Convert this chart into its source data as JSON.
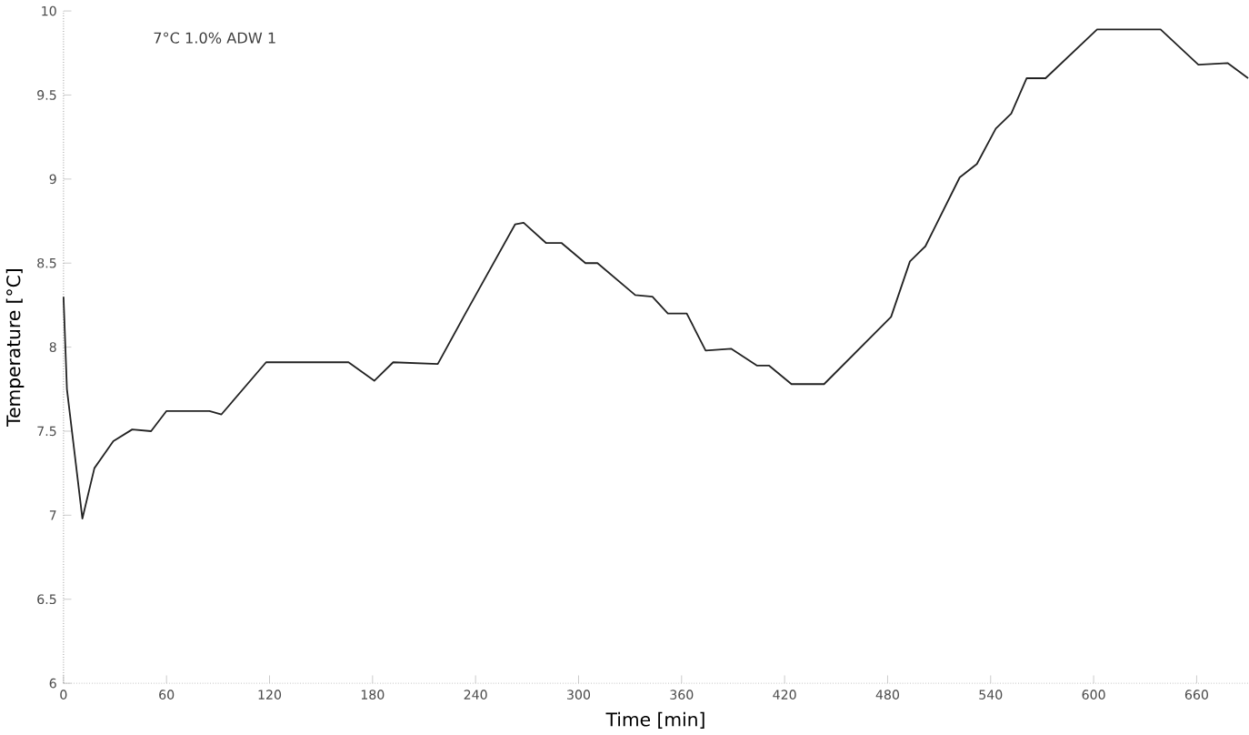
{
  "chart_data": {
    "type": "line",
    "xlabel": "Time [min]",
    "ylabel": "Temperature [°C]",
    "annotations": [
      "7°C     1.0% ADW 1"
    ],
    "xlim": [
      0,
      690
    ],
    "xticks": [
      0,
      60,
      120,
      180,
      240,
      300,
      360,
      420,
      480,
      540,
      600,
      660
    ],
    "ylim": [
      6,
      10
    ],
    "yticks": [
      6,
      6.5,
      7,
      7.5,
      8,
      8.5,
      9,
      9.5,
      10
    ],
    "series": [
      {
        "color": "#222222",
        "x": [
          0,
          2,
          11,
          18,
          29,
          40,
          51,
          60,
          85,
          92,
          118,
          166,
          181,
          192,
          218,
          233,
          263,
          268,
          281,
          290,
          304,
          311,
          333,
          343,
          352,
          363,
          374,
          389,
          404,
          411,
          424,
          443,
          482,
          493,
          502,
          522,
          532,
          543,
          552,
          561,
          572,
          602,
          639,
          661,
          678,
          690
        ],
        "values": [
          8.3,
          7.75,
          6.98,
          7.28,
          7.44,
          7.51,
          7.5,
          7.62,
          7.62,
          7.6,
          7.91,
          7.91,
          7.8,
          7.91,
          7.9,
          8.18,
          8.73,
          8.74,
          8.62,
          8.62,
          8.5,
          8.5,
          8.31,
          8.3,
          8.2,
          8.2,
          7.98,
          7.99,
          7.89,
          7.89,
          7.78,
          7.78,
          8.18,
          8.51,
          8.6,
          9.01,
          9.09,
          9.3,
          9.39,
          9.6,
          9.6,
          9.89,
          9.89,
          9.68,
          9.69,
          9.6
        ]
      }
    ]
  }
}
